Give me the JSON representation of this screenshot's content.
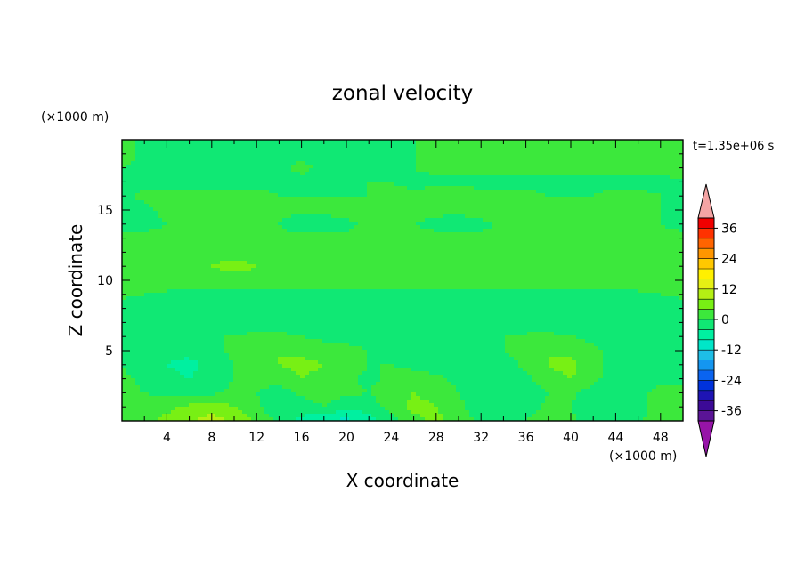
{
  "chart_data": {
    "type": "heatmap",
    "title": "zonal velocity",
    "xlabel": "X coordinate",
    "ylabel": "Z coordinate",
    "x_unit_label": "(×1000 m)",
    "y_unit_label": "(×1000 m)",
    "time_label": "t=1.35e+06 s",
    "xlim": [
      0,
      50
    ],
    "ylim": [
      0,
      20
    ],
    "x_ticks": [
      4,
      8,
      12,
      16,
      20,
      24,
      28,
      32,
      36,
      40,
      44,
      48
    ],
    "y_ticks": [
      5,
      10,
      15
    ],
    "colorbar": {
      "min": -40,
      "max": 40,
      "interval": 4,
      "tick_values": [
        36,
        24,
        12,
        0,
        -12,
        -24,
        -36
      ],
      "tick_labels": [
        "36",
        "24",
        "12",
        "0",
        "-12",
        "-24",
        "-36"
      ],
      "colors": [
        "#5a1496",
        "#3c0a96",
        "#1e14b4",
        "#0032dc",
        "#0a64f0",
        "#1496f0",
        "#1ebee6",
        "#00e6c8",
        "#00f0a0",
        "#10e874",
        "#3ce83c",
        "#78f014",
        "#b4f014",
        "#e6f014",
        "#fff000",
        "#ffc800",
        "#ff9600",
        "#ff6400",
        "#ff3200",
        "#f00000"
      ],
      "over_color": "#f4a4a4",
      "under_color": "#9614a8"
    },
    "field": {
      "x": [
        0,
        2,
        4,
        6,
        8,
        10,
        12,
        14,
        16,
        18,
        20,
        22,
        24,
        26,
        28,
        30,
        32,
        34,
        36,
        38,
        40,
        42,
        44,
        46,
        48,
        50
      ],
      "z": [
        0,
        1,
        2,
        3,
        4,
        5,
        6,
        7,
        8,
        9,
        10,
        11,
        12,
        13,
        14,
        15,
        16,
        17,
        18,
        19,
        20
      ],
      "u": [
        [
          3,
          3,
          5,
          7,
          10,
          7,
          3,
          -1,
          -5,
          -8,
          -9,
          -6,
          -2,
          3,
          5,
          2,
          -1,
          -3,
          0,
          2,
          1,
          -2,
          -3,
          -1,
          3,
          2
        ],
        [
          2,
          2,
          3,
          5,
          6,
          4,
          1,
          -3,
          -2,
          0,
          -3,
          -2,
          2,
          5,
          4,
          1,
          -2,
          -4,
          -2,
          1,
          0,
          -3,
          -4,
          -2,
          2,
          1
        ],
        [
          1,
          0,
          -1,
          -2,
          -1,
          1,
          0,
          -2,
          1,
          2,
          1,
          0,
          2,
          4,
          3,
          0,
          -2,
          -4,
          -3,
          0,
          1,
          -2,
          -3,
          -1,
          1,
          0
        ],
        [
          1,
          -1,
          -3,
          -4,
          -2,
          0,
          1,
          2,
          4,
          3,
          1,
          -1,
          1,
          2,
          1,
          -1,
          -2,
          -3,
          -1,
          3,
          4,
          1,
          -2,
          -3,
          -1,
          0
        ],
        [
          0,
          -2,
          -4,
          -5,
          -3,
          0,
          2,
          4,
          5,
          4,
          2,
          0,
          0,
          -1,
          -2,
          -2,
          -3,
          -2,
          1,
          4,
          5,
          2,
          -2,
          -4,
          -3,
          -1
        ],
        [
          -1,
          -2,
          -3,
          -3,
          -1,
          1,
          3,
          4,
          3,
          2,
          1,
          0,
          -1,
          -2,
          -2,
          -2,
          -1,
          0,
          2,
          4,
          3,
          1,
          -2,
          -3,
          -2,
          -1
        ],
        [
          -1,
          -2,
          -2,
          -1,
          0,
          0,
          1,
          1,
          0,
          -1,
          -1,
          -2,
          -2,
          -3,
          -2,
          -2,
          -1,
          0,
          1,
          1,
          0,
          -1,
          -2,
          -2,
          -2,
          -1
        ],
        [
          -2,
          -3,
          -4,
          -4,
          -3,
          -3,
          -2,
          -3,
          -2,
          -3,
          -3,
          -4,
          -4,
          -3,
          -4,
          -4,
          -3,
          -4,
          -4,
          -3,
          -3,
          -4,
          -3,
          -3,
          -2,
          -2
        ],
        [
          -2,
          -3,
          -3,
          -3,
          -2,
          -2,
          -3,
          -2,
          -2,
          -3,
          -3,
          -3,
          -4,
          -3,
          -3,
          -3,
          -3,
          -3,
          -4,
          -3,
          -3,
          -3,
          -3,
          -3,
          -2,
          -2
        ],
        [
          1,
          0,
          -1,
          -1,
          -1,
          -1,
          -1,
          -1,
          -1,
          -1,
          -1,
          -1,
          -1,
          -1,
          -1,
          -1,
          -1,
          -1,
          -1,
          -1,
          -1,
          -1,
          -1,
          -1,
          0,
          1
        ],
        [
          3,
          3,
          3,
          3,
          3,
          3,
          3,
          3,
          3,
          3,
          2,
          3,
          3,
          2,
          3,
          3,
          3,
          3,
          3,
          3,
          3,
          3,
          3,
          3,
          3,
          3
        ],
        [
          4,
          4,
          4,
          4,
          4,
          5,
          4,
          4,
          4,
          4,
          4,
          4,
          4,
          4,
          4,
          4,
          4,
          4,
          4,
          4,
          4,
          4,
          4,
          4,
          4,
          4
        ],
        [
          3,
          3,
          3,
          3,
          3,
          3,
          3,
          3,
          3,
          3,
          3,
          3,
          3,
          3,
          3,
          3,
          3,
          3,
          3,
          3,
          3,
          3,
          3,
          3,
          3,
          3
        ],
        [
          1,
          1,
          1,
          1,
          1,
          1,
          1,
          1,
          1,
          1,
          1,
          1,
          1,
          1,
          1,
          1,
          1,
          1,
          1,
          1,
          1,
          1,
          1,
          1,
          1,
          1
        ],
        [
          -1,
          -1,
          0,
          0,
          1,
          1,
          0,
          0,
          -2,
          -2,
          -1,
          1,
          1,
          0,
          -1,
          -2,
          -1,
          1,
          1,
          1,
          1,
          0,
          1,
          1,
          0,
          -1
        ],
        [
          -2,
          -1,
          1,
          1,
          2,
          2,
          1,
          1,
          1,
          1,
          2,
          2,
          2,
          1,
          1,
          1,
          2,
          2,
          2,
          1,
          1,
          1,
          2,
          1,
          0,
          -1
        ],
        [
          -1,
          1,
          2,
          2,
          1,
          1,
          1,
          0,
          0,
          0,
          0,
          0,
          1,
          1,
          2,
          2,
          1,
          1,
          1,
          0,
          0,
          0,
          1,
          1,
          0,
          -1
        ],
        [
          -1,
          -1,
          -2,
          -2,
          -1,
          -1,
          -1,
          -1,
          -1,
          -1,
          -1,
          0,
          0,
          -1,
          -1,
          -1,
          -1,
          -1,
          -1,
          -1,
          -1,
          -1,
          -1,
          -1,
          -1,
          0
        ],
        [
          0,
          -1,
          -2,
          -2,
          -1,
          -1,
          -1,
          -1,
          1,
          -1,
          -1,
          -1,
          0,
          0,
          1,
          1,
          1,
          1,
          1,
          1,
          1,
          1,
          1,
          1,
          1,
          1
        ],
        [
          2,
          -1,
          -2,
          -2,
          -1,
          -2,
          -2,
          -2,
          -1,
          -1,
          -2,
          -2,
          -1,
          0,
          1,
          1,
          1,
          1,
          1,
          1,
          1,
          1,
          1,
          1,
          1,
          1
        ],
        [
          2,
          -1,
          -2,
          -2,
          -2,
          -2,
          -2,
          -2,
          -2,
          -2,
          -2,
          -2,
          -1,
          0,
          1,
          1,
          1,
          1,
          1,
          1,
          1,
          1,
          1,
          1,
          1,
          1
        ]
      ]
    }
  }
}
